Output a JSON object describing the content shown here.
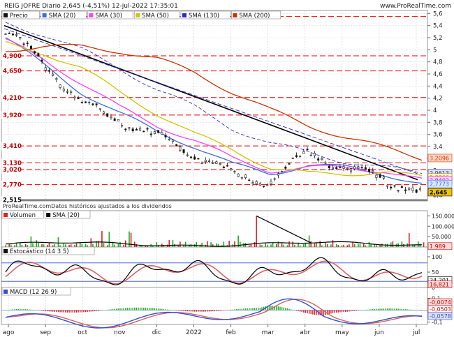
{
  "header": {
    "title": "REIG JOFRE Diario 2,645 (-4,51%) 12-jul-2022 17:35:01",
    "source_url": "www.ProRealTime.com"
  },
  "copyright": "ProRealTime.comDatos históricos ajustados a los dividendos",
  "colors": {
    "price": "#111111",
    "sma20": "#3a6fe0",
    "sma30": "#ff40ff",
    "sma50": "#d4c400",
    "sma130": "#2a2ad0",
    "sma200": "#cc3300",
    "hline": "#ee0000",
    "volume_up": "#22aa22",
    "volume_down": "#dd2222",
    "stoch_k": "#000000",
    "stoch_d": "#e06060",
    "macd_line": "#3050d0",
    "macd_signal": "#e06060"
  },
  "legends": {
    "price": [
      {
        "key": "price",
        "label": "Precio",
        "color": "#111111"
      },
      {
        "key": "sma20",
        "label": "SMA (20)",
        "color": "#3a6fe0"
      },
      {
        "key": "sma30",
        "label": "SMA (30)",
        "color": "#ff40ff"
      },
      {
        "key": "sma50",
        "label": "SMA (50)",
        "color": "#d4c400"
      },
      {
        "key": "sma130",
        "label": "SMA (130)",
        "color": "#2a2ad0"
      },
      {
        "key": "sma200",
        "label": "SMA (200)",
        "color": "#cc3300"
      }
    ],
    "volume": [
      {
        "key": "volume",
        "label": "Volumen",
        "color": "#dd2222"
      },
      {
        "key": "vsma",
        "label": "SMA (20)",
        "color": "#000000"
      }
    ],
    "stoch": [
      {
        "key": "stoch",
        "label": "Estocástico (14 3 5)",
        "color": "#111111"
      }
    ],
    "macd": [
      {
        "key": "macd",
        "label": "MACD (12 26 9)",
        "color": "#3050d0"
      }
    ]
  },
  "chart_data": [
    {
      "type": "candlestick",
      "name": "Precio",
      "x_ticks": [
        "ago",
        "sep",
        "oct",
        "nov",
        "dic",
        "2022",
        "feb",
        "mar",
        "abr",
        "may",
        "jun",
        "jul"
      ],
      "y_ticks": [
        "5,6",
        "5,4",
        "5,2",
        "5",
        "4,8",
        "4,6",
        "4,4",
        "4,2",
        "4",
        "3,8",
        "3,6",
        "3,4",
        "3,2",
        "3",
        "2,8",
        "2,6"
      ],
      "ylim": [
        2.5,
        5.65
      ],
      "horizontal_levels": [
        "5,550",
        "4,900",
        "4,650",
        "4,210",
        "3,920",
        "3,410",
        "3,130",
        "3,020",
        "2,770",
        "2,515"
      ],
      "last_values": {
        "price": "2,645",
        "sma200": "3,2096",
        "sma130": "2,9613",
        "sma50": "2,8866",
        "sma30": "2,8403",
        "sma20": "2,7773"
      },
      "series": [
        {
          "name": "Precio",
          "x": [
            "ago",
            "sep",
            "oct",
            "nov",
            "dic",
            "2022",
            "feb",
            "mar",
            "abr",
            "may",
            "jun",
            "jul"
          ],
          "values": [
            5.3,
            4.8,
            4.1,
            3.85,
            3.55,
            3.3,
            2.9,
            2.85,
            3.3,
            3.05,
            2.85,
            2.65
          ]
        },
        {
          "name": "SMA (20)",
          "x": [
            "ago",
            "sep",
            "oct",
            "nov",
            "dic",
            "2022",
            "feb",
            "mar",
            "abr",
            "may",
            "jun",
            "jul"
          ],
          "values": [
            5.2,
            4.75,
            4.3,
            3.95,
            3.65,
            3.4,
            3.1,
            2.95,
            3.1,
            3.05,
            2.95,
            2.78
          ]
        },
        {
          "name": "SMA (30)",
          "x": [
            "ago",
            "sep",
            "oct",
            "nov",
            "dic",
            "2022",
            "feb",
            "mar",
            "abr",
            "may",
            "jun",
            "jul"
          ],
          "values": [
            5.15,
            4.85,
            4.45,
            4.05,
            3.75,
            3.5,
            3.2,
            3.0,
            3.05,
            3.05,
            3.0,
            2.84
          ]
        },
        {
          "name": "SMA (50)",
          "x": [
            "ago",
            "sep",
            "oct",
            "nov",
            "dic",
            "2022",
            "feb",
            "mar",
            "abr",
            "may",
            "jun",
            "jul"
          ],
          "values": [
            5.1,
            4.95,
            4.7,
            4.3,
            3.95,
            3.6,
            3.35,
            3.05,
            2.95,
            2.95,
            2.98,
            2.89
          ]
        },
        {
          "name": "SMA (130)",
          "x": [
            "ago",
            "sep",
            "oct",
            "nov",
            "dic",
            "2022",
            "feb",
            "mar",
            "abr",
            "may",
            "jun",
            "jul"
          ],
          "values": [
            5.45,
            5.25,
            5.0,
            4.7,
            4.35,
            4.05,
            3.7,
            3.45,
            3.3,
            3.15,
            3.05,
            2.96
          ]
        },
        {
          "name": "SMA (200)",
          "x": [
            "ago",
            "sep",
            "oct",
            "nov",
            "dic",
            "2022",
            "feb",
            "mar",
            "abr",
            "may",
            "jun",
            "jul"
          ],
          "values": [
            5.0,
            5.05,
            5.05,
            4.98,
            4.85,
            4.62,
            4.3,
            4.0,
            3.75,
            3.55,
            3.38,
            3.21
          ]
        }
      ]
    },
    {
      "type": "bar",
      "name": "Volumen",
      "y_ticks": [
        "150.000",
        "100.000",
        "50.000"
      ],
      "ylim": [
        0,
        175000
      ],
      "last_value": "1.989"
    },
    {
      "type": "line",
      "name": "Estocástico (14 3 5)",
      "y_ticks": [
        "100",
        "50",
        "0"
      ],
      "ylim": [
        0,
        100
      ],
      "last_values": [
        "24,201",
        "16,821"
      ]
    },
    {
      "type": "line",
      "name": "MACD (12 26 9)",
      "y_ticks": [
        "0,1",
        "0",
        "-0,1"
      ],
      "ylim": [
        -0.12,
        0.12
      ],
      "last_values": [
        "-0,0074",
        "-0,0503",
        "-0,0578"
      ]
    }
  ]
}
